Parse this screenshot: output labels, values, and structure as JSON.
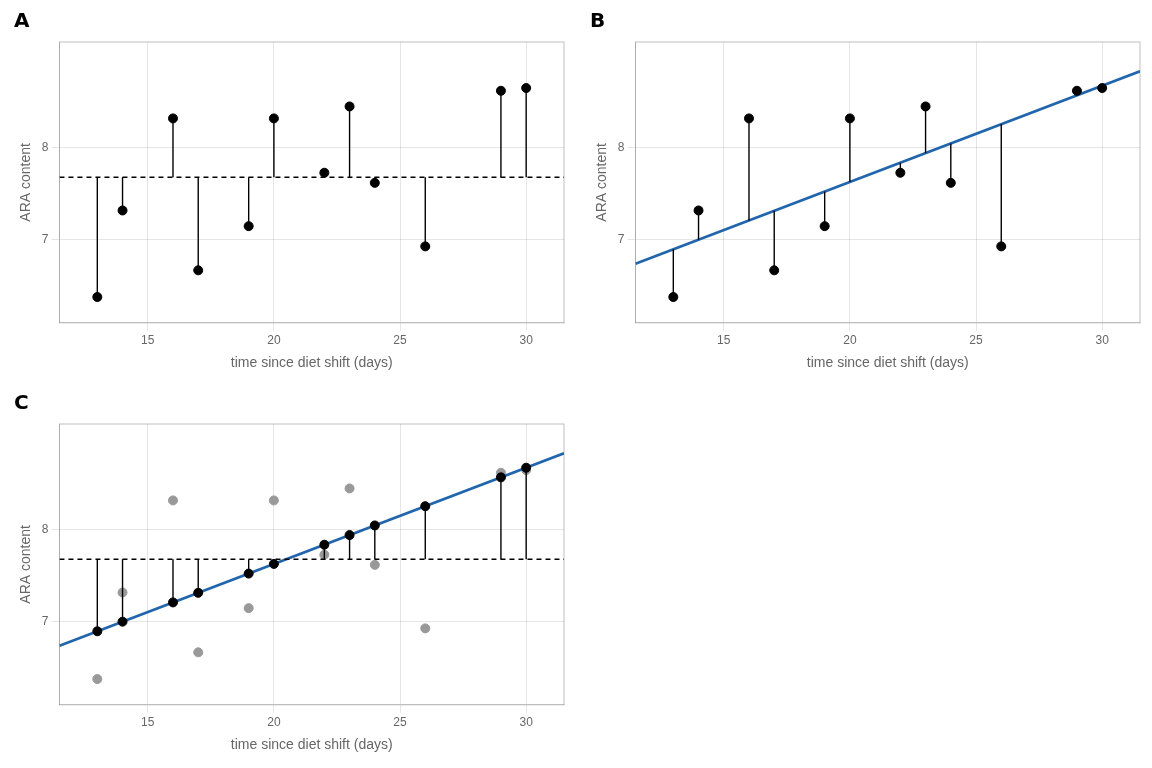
{
  "chart_data": [
    {
      "type": "scatter",
      "title": "A",
      "xlabel": "time since diet shift (days)",
      "ylabel": "ARA content",
      "x": [
        13,
        14,
        16,
        17,
        19,
        20,
        22,
        23,
        24,
        26,
        29,
        30
      ],
      "xlim": [
        11.5,
        31.5
      ],
      "ylim": [
        6.1,
        9.15
      ],
      "xticks": [
        15,
        20,
        25,
        30
      ],
      "yticks": [
        7,
        8
      ],
      "grid": true,
      "series": [
        {
          "type": "line",
          "line_style": "dashed",
          "color": "#000000",
          "x": [
            11.5,
            31.5
          ],
          "values": [
            7.68,
            7.68
          ]
        },
        {
          "type": "segment",
          "color": "#000000",
          "values": [
            6.38,
            7.32,
            8.32,
            6.67,
            7.15,
            8.32,
            7.73,
            8.45,
            7.62,
            6.93,
            8.62,
            8.65
          ],
          "base": [
            7.68,
            7.68,
            7.68,
            7.68,
            7.68,
            7.68,
            7.68,
            7.68,
            7.68,
            7.68,
            7.68,
            7.68
          ]
        },
        {
          "type": "scatter",
          "marker": "circle",
          "color": "#000000",
          "values": [
            6.38,
            7.32,
            8.32,
            6.67,
            7.15,
            8.32,
            7.73,
            8.45,
            7.62,
            6.93,
            8.62,
            8.65
          ]
        }
      ]
    },
    {
      "type": "scatter",
      "title": "B",
      "xlabel": "time since diet shift (days)",
      "ylabel": "ARA content",
      "x": [
        13,
        14,
        16,
        17,
        19,
        20,
        22,
        23,
        24,
        26,
        29,
        30
      ],
      "xlim": [
        11.5,
        31.5
      ],
      "ylim": [
        6.1,
        9.15
      ],
      "xticks": [
        15,
        20,
        25,
        30
      ],
      "yticks": [
        7,
        8
      ],
      "grid": true,
      "series": [
        {
          "type": "line",
          "line_style": "solid",
          "color": "#2166AC",
          "x": [
            11.5,
            31.5
          ],
          "values": [
            6.74175,
            8.83175
          ]
        },
        {
          "type": "segment",
          "color": "#000000",
          "values": [
            6.38,
            7.32,
            8.32,
            6.67,
            7.15,
            8.32,
            7.73,
            8.45,
            7.62,
            6.93,
            8.62,
            8.65
          ],
          "base": [
            6.8985,
            7.003,
            7.212,
            7.3165,
            7.5255,
            7.63,
            7.839,
            7.9435,
            8.048,
            8.257,
            8.5705,
            8.675
          ]
        },
        {
          "type": "scatter",
          "marker": "circle",
          "color": "#000000",
          "values": [
            6.38,
            7.32,
            8.32,
            6.67,
            7.15,
            8.32,
            7.73,
            8.45,
            7.62,
            6.93,
            8.62,
            8.65
          ]
        }
      ]
    },
    {
      "type": "scatter",
      "title": "C",
      "xlabel": "time since diet shift (days)",
      "ylabel": "ARA content",
      "x": [
        13,
        14,
        16,
        17,
        19,
        20,
        22,
        23,
        24,
        26,
        29,
        30
      ],
      "xlim": [
        11.5,
        31.5
      ],
      "ylim": [
        6.1,
        9.15
      ],
      "xticks": [
        15,
        20,
        25,
        30
      ],
      "yticks": [
        7,
        8
      ],
      "grid": true,
      "series": [
        {
          "type": "scatter",
          "marker": "circle",
          "color": "#999999",
          "values": [
            6.38,
            7.32,
            8.32,
            6.67,
            7.15,
            8.32,
            7.73,
            8.45,
            7.62,
            6.93,
            8.62,
            8.65
          ]
        },
        {
          "type": "line",
          "line_style": "solid",
          "color": "#2166AC",
          "x": [
            11.5,
            31.5
          ],
          "values": [
            6.74175,
            8.83175
          ]
        },
        {
          "type": "line",
          "line_style": "dashed",
          "color": "#000000",
          "x": [
            11.5,
            31.5
          ],
          "values": [
            7.68,
            7.68
          ]
        },
        {
          "type": "segment",
          "color": "#000000",
          "values": [
            6.8985,
            7.003,
            7.212,
            7.3165,
            7.5255,
            7.63,
            7.839,
            7.9435,
            8.048,
            8.257,
            8.5705,
            8.675
          ],
          "base": [
            7.68,
            7.68,
            7.68,
            7.68,
            7.68,
            7.68,
            7.68,
            7.68,
            7.68,
            7.68,
            7.68,
            7.68
          ]
        },
        {
          "type": "scatter",
          "marker": "circle",
          "color": "#000000",
          "values": [
            6.8985,
            7.003,
            7.212,
            7.3165,
            7.5255,
            7.63,
            7.839,
            7.9435,
            8.048,
            8.257,
            8.5705,
            8.675
          ]
        }
      ]
    }
  ]
}
